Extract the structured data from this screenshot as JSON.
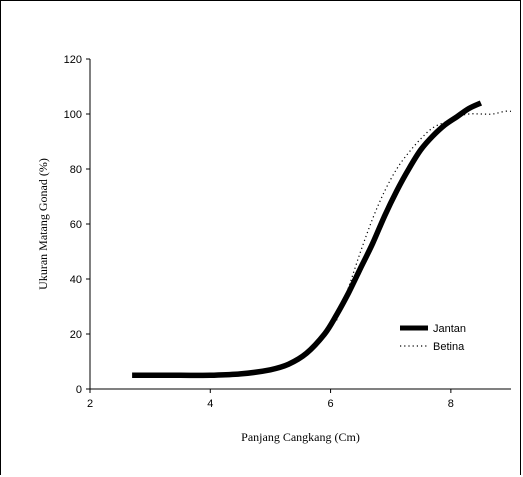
{
  "chart_data": {
    "type": "line",
    "title": "",
    "xlabel": "Panjang Cangkang (Cm)",
    "ylabel": "Ukuran Matang Gonad (%)",
    "xlim": [
      2,
      9
    ],
    "ylim": [
      0,
      120
    ],
    "x_ticks": [
      2,
      4,
      6,
      8
    ],
    "y_ticks": [
      0,
      20,
      40,
      60,
      80,
      100,
      120
    ],
    "grid": false,
    "legend_position": "bottom-right",
    "series": [
      {
        "name": "Jantan",
        "style": "solid",
        "color": "#000000",
        "x": [
          2.7,
          3.0,
          3.5,
          4.0,
          4.5,
          5.0,
          5.3,
          5.6,
          5.9,
          6.1,
          6.3,
          6.5,
          6.7,
          6.9,
          7.1,
          7.3,
          7.5,
          7.7,
          7.9,
          8.1,
          8.3,
          8.5
        ],
        "values": [
          5,
          5,
          5,
          5,
          5.5,
          7,
          9,
          13,
          20,
          27,
          35,
          44,
          53,
          63,
          72,
          80,
          87,
          92,
          96,
          99,
          102,
          104
        ]
      },
      {
        "name": "Betina",
        "style": "dotted",
        "color": "#000000",
        "x": [
          6.1,
          6.3,
          6.5,
          6.7,
          6.9,
          7.1,
          7.3,
          7.5,
          7.7,
          7.9,
          8.1,
          8.3,
          8.5,
          8.7,
          8.9,
          9.0
        ],
        "values": [
          25,
          37,
          50,
          62,
          72,
          80,
          86,
          91,
          95,
          97,
          99,
          100,
          100,
          100,
          101,
          101
        ]
      }
    ]
  }
}
